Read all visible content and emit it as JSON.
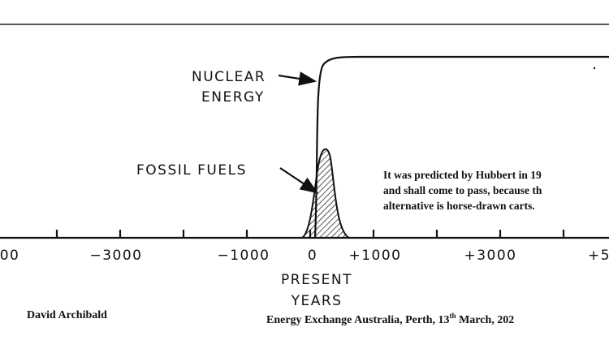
{
  "labels": {
    "nuclear": [
      "NUCLEAR",
      "ENERGY"
    ],
    "fossil": "FOSSIL FUELS"
  },
  "axis": {
    "ticks": [
      "00",
      "−3000",
      "−1000",
      "0",
      "+1000",
      "+3000",
      "+5"
    ],
    "title": [
      "PRESENT",
      "YEARS"
    ]
  },
  "note": [
    "It was predicted by Hubbert in 19",
    "and shall come to pass, because th",
    "alternative is horse-drawn carts."
  ],
  "footer": {
    "author": "David Archibald",
    "event": [
      "Energy Exchange Australia, Perth, 13",
      "th",
      " March, 202"
    ]
  }
}
